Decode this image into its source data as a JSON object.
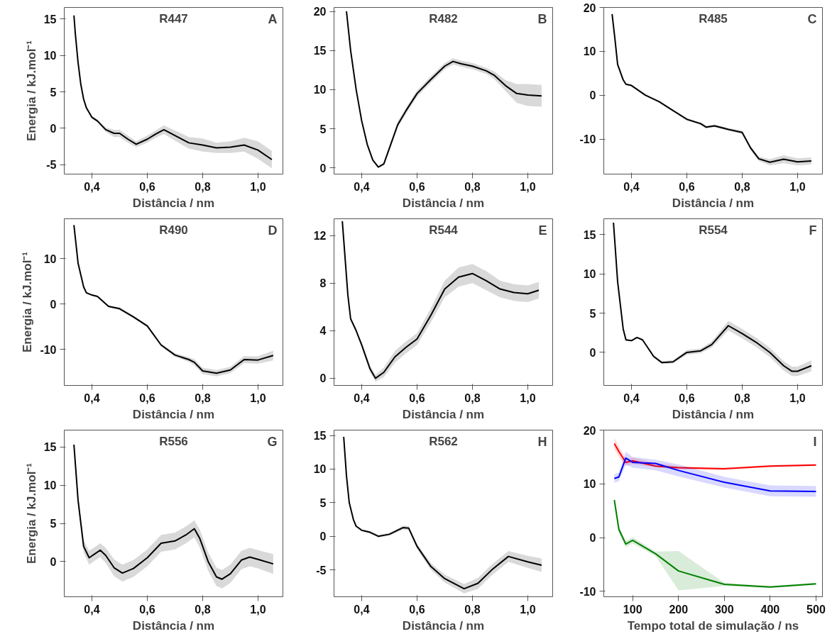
{
  "chart_data": [
    {
      "type": "line",
      "title": "R447",
      "annotations": [
        "A"
      ],
      "xlabel": "Distância / nm",
      "ylabel": "Energia / kJ.mol⁻¹",
      "xlim": [
        0.3,
        1.09
      ],
      "xticks": [
        {
          "value": 0.4,
          "label": "0,4"
        },
        {
          "value": 0.6,
          "label": "0,6"
        },
        {
          "value": 0.8,
          "label": "0,8"
        },
        {
          "value": 1.0,
          "label": "1,0"
        }
      ],
      "ylim": [
        -6.3,
        16.6
      ],
      "yticks": [
        -5,
        0,
        5,
        10,
        15
      ],
      "series": [
        {
          "color": "#000000",
          "x": [
            0.335,
            0.34,
            0.35,
            0.36,
            0.37,
            0.38,
            0.4,
            0.42,
            0.45,
            0.48,
            0.5,
            0.53,
            0.56,
            0.6,
            0.63,
            0.66,
            0.7,
            0.75,
            0.8,
            0.85,
            0.9,
            0.95,
            1.0,
            1.05
          ],
          "values": [
            15.5,
            13,
            9,
            6,
            4,
            2.8,
            1.5,
            1.0,
            -0.2,
            -0.7,
            -0.7,
            -1.5,
            -2.2,
            -1.5,
            -0.8,
            -0.2,
            -1.0,
            -2.0,
            -2.3,
            -2.7,
            -2.6,
            -2.3,
            -3.0,
            -4.3
          ],
          "lower": [
            15.3,
            12.8,
            8.8,
            5.8,
            3.8,
            2.6,
            1.3,
            0.8,
            -0.5,
            -1.2,
            -1.2,
            -2.0,
            -2.6,
            -2.0,
            -1.3,
            -0.8,
            -1.7,
            -2.8,
            -3.2,
            -3.4,
            -3.4,
            -3.2,
            -4.2,
            -5.5
          ],
          "upper": [
            15.7,
            13.2,
            9.2,
            6.2,
            4.2,
            3.0,
            1.7,
            1.2,
            0.1,
            -0.2,
            -0.2,
            -1.0,
            -1.8,
            -1.0,
            -0.3,
            0.4,
            -0.3,
            -1.2,
            -1.4,
            -2.0,
            -1.8,
            -1.3,
            -1.8,
            -3.1
          ]
        }
      ]
    },
    {
      "type": "line",
      "title": "R482",
      "annotations": [
        "B"
      ],
      "xlabel": "Distância / nm",
      "xlim": [
        0.3,
        1.09
      ],
      "xticks": [
        {
          "value": 0.4,
          "label": "0,4"
        },
        {
          "value": 0.6,
          "label": "0,6"
        },
        {
          "value": 0.8,
          "label": "0,8"
        },
        {
          "value": 1.0,
          "label": "1,0"
        }
      ],
      "ylim": [
        -0.8,
        20.5
      ],
      "yticks": [
        0,
        5,
        10,
        15,
        20
      ],
      "series": [
        {
          "color": "#000000",
          "x": [
            0.345,
            0.36,
            0.38,
            0.4,
            0.42,
            0.44,
            0.46,
            0.48,
            0.5,
            0.53,
            0.56,
            0.6,
            0.65,
            0.7,
            0.73,
            0.76,
            0.8,
            0.85,
            0.88,
            0.92,
            0.96,
            1.0,
            1.05
          ],
          "values": [
            20,
            15,
            10,
            6,
            3,
            1,
            0.1,
            0.5,
            2.5,
            5.5,
            7.3,
            9.5,
            11.3,
            13,
            13.6,
            13.3,
            13,
            12.4,
            11.8,
            10.5,
            9.5,
            9.3,
            9.2
          ],
          "lower": [
            19.9,
            14.9,
            9.9,
            5.9,
            2.9,
            0.9,
            0,
            0.3,
            2.2,
            5.1,
            6.9,
            9.1,
            10.9,
            12.6,
            13.2,
            12.9,
            12.6,
            12.0,
            11.3,
            9.8,
            8.3,
            7.9,
            7.8
          ],
          "upper": [
            20.1,
            15.1,
            10.1,
            6.1,
            3.1,
            1.1,
            0.2,
            0.7,
            2.8,
            5.9,
            7.7,
            9.9,
            11.7,
            13.4,
            14.0,
            13.7,
            13.4,
            12.8,
            12.3,
            11.2,
            10.7,
            10.7,
            10.6
          ]
        }
      ]
    },
    {
      "type": "line",
      "title": "R485",
      "annotations": [
        "C"
      ],
      "xlabel": "Distância / nm",
      "xlim": [
        0.3,
        1.09
      ],
      "xticks": [
        {
          "value": 0.4,
          "label": "0,4"
        },
        {
          "value": 0.6,
          "label": "0,6"
        },
        {
          "value": 0.8,
          "label": "0,8"
        },
        {
          "value": 1.0,
          "label": "1,0"
        }
      ],
      "ylim": [
        -18,
        20
      ],
      "yticks": [
        -10,
        0,
        10,
        20
      ],
      "series": [
        {
          "color": "#000000",
          "x": [
            0.33,
            0.34,
            0.35,
            0.37,
            0.38,
            0.4,
            0.45,
            0.5,
            0.55,
            0.6,
            0.65,
            0.67,
            0.7,
            0.75,
            0.8,
            0.83,
            0.86,
            0.9,
            0.95,
            1.0,
            1.05
          ],
          "values": [
            18.5,
            13,
            7,
            3.5,
            2.5,
            2.2,
            0,
            -1.5,
            -3.5,
            -5.5,
            -6.5,
            -7.3,
            -7,
            -7.8,
            -8.5,
            -12,
            -14.5,
            -15.3,
            -14.6,
            -15.2,
            -15.0
          ],
          "lower": [
            18.3,
            12.8,
            6.8,
            3.3,
            2.3,
            2.0,
            -0.2,
            -1.7,
            -3.7,
            -5.7,
            -6.8,
            -7.6,
            -7.3,
            -8.1,
            -8.9,
            -12.5,
            -15.0,
            -16.0,
            -15.5,
            -16.0,
            -15.8
          ],
          "upper": [
            18.7,
            13.2,
            7.2,
            3.7,
            2.7,
            2.4,
            0.2,
            -1.3,
            -3.3,
            -5.3,
            -6.2,
            -7.0,
            -6.7,
            -7.5,
            -8.1,
            -11.5,
            -14.0,
            -14.6,
            -13.7,
            -14.4,
            -14.2
          ]
        }
      ]
    },
    {
      "type": "line",
      "title": "R490",
      "annotations": [
        "D"
      ],
      "xlabel": "Distância / nm",
      "ylabel": "Energia / kJ.mol⁻¹",
      "xlim": [
        0.3,
        1.09
      ],
      "xticks": [
        {
          "value": 0.4,
          "label": "0,4"
        },
        {
          "value": 0.6,
          "label": "0,6"
        },
        {
          "value": 0.8,
          "label": "0,8"
        },
        {
          "value": 1.0,
          "label": "1,0"
        }
      ],
      "ylim": [
        -17.9,
        18.8
      ],
      "yticks": [
        -10,
        0,
        10
      ],
      "series": [
        {
          "color": "#000000",
          "x": [
            0.335,
            0.35,
            0.37,
            0.38,
            0.4,
            0.42,
            0.46,
            0.5,
            0.55,
            0.6,
            0.65,
            0.7,
            0.75,
            0.77,
            0.8,
            0.85,
            0.9,
            0.95,
            1.0,
            1.055
          ],
          "values": [
            17.4,
            9,
            3.8,
            2.5,
            2,
            1.7,
            -0.5,
            -1,
            -2.8,
            -4.8,
            -9,
            -11.2,
            -12.2,
            -12.8,
            -14.7,
            -15.2,
            -14.5,
            -12.2,
            -12.3,
            -11.3
          ],
          "lower": [
            17.2,
            8.8,
            3.6,
            2.3,
            1.8,
            1.5,
            -0.7,
            -1.3,
            -3.1,
            -5.1,
            -9.3,
            -11.6,
            -12.7,
            -13.5,
            -15.4,
            -15.9,
            -15.2,
            -13.0,
            -13.1,
            -12.4
          ],
          "upper": [
            17.6,
            9.2,
            4.0,
            2.7,
            2.2,
            1.9,
            -0.3,
            -0.7,
            -2.5,
            -4.5,
            -8.7,
            -10.8,
            -11.7,
            -12.1,
            -14.0,
            -14.5,
            -13.8,
            -11.4,
            -11.5,
            -10.2
          ]
        }
      ]
    },
    {
      "type": "line",
      "title": "R544",
      "annotations": [
        "E"
      ],
      "xlabel": "Distância / nm",
      "xlim": [
        0.3,
        1.09
      ],
      "xticks": [
        {
          "value": 0.4,
          "label": "0,4"
        },
        {
          "value": 0.6,
          "label": "0,6"
        },
        {
          "value": 0.8,
          "label": "0,8"
        },
        {
          "value": 1.0,
          "label": "1,0"
        }
      ],
      "ylim": [
        -0.6,
        13.4
      ],
      "yticks": [
        0,
        4,
        8,
        12
      ],
      "series": [
        {
          "color": "#000000",
          "x": [
            0.33,
            0.35,
            0.36,
            0.38,
            0.4,
            0.43,
            0.45,
            0.48,
            0.52,
            0.56,
            0.6,
            0.65,
            0.7,
            0.75,
            0.8,
            0.85,
            0.9,
            0.95,
            1.0,
            1.04
          ],
          "values": [
            13.2,
            7,
            5,
            4,
            2.8,
            0.8,
            0,
            0.5,
            1.8,
            2.6,
            3.3,
            5.3,
            7.5,
            8.5,
            8.8,
            8.2,
            7.5,
            7.2,
            7.1,
            7.4
          ],
          "lower": [
            13.1,
            6.9,
            4.9,
            3.9,
            2.6,
            0.5,
            -0.3,
            0.1,
            1.3,
            2.1,
            2.8,
            4.7,
            6.8,
            7.7,
            8.0,
            7.4,
            6.8,
            6.5,
            6.4,
            6.7
          ],
          "upper": [
            13.3,
            7.1,
            5.1,
            4.1,
            3.0,
            1.1,
            0.3,
            0.9,
            2.3,
            3.1,
            3.8,
            5.9,
            8.2,
            9.3,
            9.6,
            9.0,
            8.2,
            7.9,
            7.8,
            8.1
          ]
        }
      ]
    },
    {
      "type": "line",
      "title": "R554",
      "annotations": [
        "F"
      ],
      "xlabel": "Distância / nm",
      "xlim": [
        0.3,
        1.09
      ],
      "xticks": [
        {
          "value": 0.4,
          "label": "0,4"
        },
        {
          "value": 0.6,
          "label": "0,6"
        },
        {
          "value": 0.8,
          "label": "0,8"
        },
        {
          "value": 1.0,
          "label": "1,0"
        }
      ],
      "ylim": [
        -4.2,
        17
      ],
      "yticks": [
        0,
        5,
        10,
        15
      ],
      "series": [
        {
          "color": "#000000",
          "x": [
            0.335,
            0.35,
            0.37,
            0.38,
            0.4,
            0.42,
            0.44,
            0.48,
            0.51,
            0.55,
            0.6,
            0.65,
            0.69,
            0.75,
            0.8,
            0.85,
            0.9,
            0.95,
            0.98,
            1.0,
            1.05
          ],
          "values": [
            16.5,
            9,
            3,
            1.6,
            1.5,
            1.9,
            1.6,
            -0.5,
            -1.3,
            -1.2,
            0,
            0.2,
            1,
            3.4,
            2.4,
            1.3,
            0,
            -1.7,
            -2.4,
            -2.4,
            -1.7
          ],
          "lower": [
            16.4,
            8.9,
            2.9,
            1.5,
            1.4,
            1.8,
            1.5,
            -0.7,
            -1.5,
            -1.4,
            -0.3,
            -0.1,
            0.6,
            2.8,
            1.8,
            0.7,
            -0.6,
            -2.3,
            -3.0,
            -3.0,
            -2.4
          ],
          "upper": [
            16.6,
            9.1,
            3.1,
            1.7,
            1.6,
            2.0,
            1.7,
            -0.3,
            -1.1,
            -1.0,
            0.3,
            0.5,
            1.4,
            4.0,
            3.0,
            1.9,
            0.6,
            -1.1,
            -1.8,
            -1.8,
            -1.0
          ]
        }
      ]
    },
    {
      "type": "line",
      "title": "R556",
      "annotations": [
        "G"
      ],
      "xlabel": "Distância / nm",
      "ylabel": "Energia / kJ.mol⁻¹",
      "xlim": [
        0.3,
        1.09
      ],
      "xticks": [
        {
          "value": 0.4,
          "label": "0,4"
        },
        {
          "value": 0.6,
          "label": "0,6"
        },
        {
          "value": 0.8,
          "label": "0,8"
        },
        {
          "value": 1.0,
          "label": "1,0"
        }
      ],
      "ylim": [
        -4.6,
        17.2
      ],
      "yticks": [
        0,
        5,
        10,
        15
      ],
      "series": [
        {
          "color": "#000000",
          "x": [
            0.335,
            0.35,
            0.37,
            0.39,
            0.41,
            0.43,
            0.45,
            0.48,
            0.51,
            0.55,
            0.6,
            0.65,
            0.7,
            0.74,
            0.77,
            0.79,
            0.82,
            0.85,
            0.87,
            0.9,
            0.94,
            0.97,
            1.0,
            1.055
          ],
          "values": [
            15.3,
            8,
            2,
            0.5,
            1,
            1.5,
            0.8,
            -0.8,
            -1.5,
            -0.9,
            0.5,
            2.4,
            2.7,
            3.5,
            4.3,
            3,
            0,
            -2,
            -2.3,
            -1.6,
            0.2,
            0.6,
            0.3,
            -0.3
          ],
          "lower": [
            14.5,
            7.3,
            1.2,
            -0.4,
            0.1,
            0.6,
            -0.2,
            -1.9,
            -2.6,
            -2.0,
            -0.6,
            1.3,
            1.6,
            2.4,
            3.2,
            1.8,
            -1.2,
            -3.2,
            -3.5,
            -2.8,
            -1.0,
            -0.6,
            -0.9,
            -1.6
          ],
          "upper": [
            16.1,
            8.7,
            2.8,
            1.4,
            1.9,
            2.4,
            1.8,
            0.3,
            -0.4,
            0.2,
            1.6,
            3.5,
            3.8,
            4.6,
            5.4,
            4.2,
            1.2,
            -0.8,
            -1.1,
            -0.4,
            1.4,
            1.8,
            1.5,
            1.0
          ]
        }
      ]
    },
    {
      "type": "line",
      "title": "R562",
      "annotations": [
        "H"
      ],
      "xlabel": "Distância / nm",
      "xlim": [
        0.3,
        1.09
      ],
      "xticks": [
        {
          "value": 0.4,
          "label": "0,4"
        },
        {
          "value": 0.6,
          "label": "0,6"
        },
        {
          "value": 0.8,
          "label": "0,8"
        },
        {
          "value": 1.0,
          "label": "1,0"
        }
      ],
      "ylim": [
        -9,
        15.8
      ],
      "yticks": [
        -5,
        0,
        5,
        10,
        15
      ],
      "series": [
        {
          "color": "#000000",
          "x": [
            0.335,
            0.345,
            0.355,
            0.37,
            0.38,
            0.4,
            0.43,
            0.46,
            0.5,
            0.55,
            0.57,
            0.6,
            0.65,
            0.7,
            0.77,
            0.82,
            0.87,
            0.93,
            1.0,
            1.05
          ],
          "values": [
            14.8,
            9,
            5,
            2.5,
            1.5,
            0.9,
            0.6,
            0,
            0.3,
            1.3,
            1.2,
            -1.5,
            -4.5,
            -6.3,
            -7.8,
            -7,
            -5,
            -3,
            -3.8,
            -4.3
          ],
          "lower": [
            14.7,
            8.9,
            4.9,
            2.4,
            1.4,
            0.8,
            0.4,
            -0.2,
            0.1,
            1.0,
            0.9,
            -1.9,
            -5.0,
            -6.9,
            -8.5,
            -7.8,
            -5.8,
            -3.8,
            -4.7,
            -5.3
          ],
          "upper": [
            14.9,
            9.1,
            5.1,
            2.6,
            1.6,
            1.0,
            0.8,
            0.2,
            0.5,
            1.6,
            1.5,
            -1.1,
            -4.0,
            -5.7,
            -7.1,
            -6.2,
            -4.2,
            -2.2,
            -2.9,
            -3.3
          ]
        }
      ]
    },
    {
      "type": "line",
      "annotations": [
        "I"
      ],
      "xlabel": "Tempo total de simulação / ns",
      "xlim": [
        37,
        514
      ],
      "xticks": [
        100,
        200,
        300,
        400,
        500
      ],
      "ylim": [
        -11,
        20
      ],
      "yticks": [
        -10,
        0,
        10,
        20
      ],
      "series": [
        {
          "color": "#ff0000",
          "x": [
            60,
            70,
            85,
            100,
            150,
            200,
            300,
            400,
            500
          ],
          "values": [
            17.5,
            16,
            14,
            14.3,
            13.3,
            13,
            12.8,
            13.3,
            13.5
          ],
          "lower": [
            16.5,
            15,
            13.3,
            13.7,
            13.1,
            12.7,
            12.6,
            13.1,
            13.3
          ],
          "upper": [
            18.5,
            17,
            14.7,
            14.9,
            13.9,
            13.3,
            13.0,
            13.5,
            13.7
          ]
        },
        {
          "color": "#0000ff",
          "x": [
            60,
            70,
            85,
            100,
            150,
            200,
            300,
            400,
            500
          ],
          "values": [
            11,
            11.3,
            14.8,
            14,
            13.8,
            12.5,
            10.3,
            8.7,
            8.6
          ],
          "lower": [
            10.2,
            10.5,
            13.6,
            13,
            12.5,
            11.4,
            9.3,
            7.7,
            7.6
          ],
          "upper": [
            11.8,
            12.1,
            16,
            15,
            14.5,
            13.6,
            11.3,
            9.7,
            9.6
          ]
        },
        {
          "color": "#008000",
          "x": [
            60,
            70,
            85,
            100,
            150,
            200,
            300,
            400,
            500
          ],
          "values": [
            7,
            1.5,
            -1.2,
            -0.5,
            -3,
            -6.2,
            -8.7,
            -9.2,
            -8.6
          ],
          "lower": [
            6.2,
            0.9,
            -1.8,
            -1.1,
            -3.4,
            -9.8,
            -9.0,
            -9.4,
            -8.8
          ],
          "upper": [
            7.8,
            2.1,
            -0.6,
            0.1,
            -2.6,
            -2.5,
            -8.4,
            -9.0,
            -8.4
          ]
        }
      ]
    }
  ]
}
